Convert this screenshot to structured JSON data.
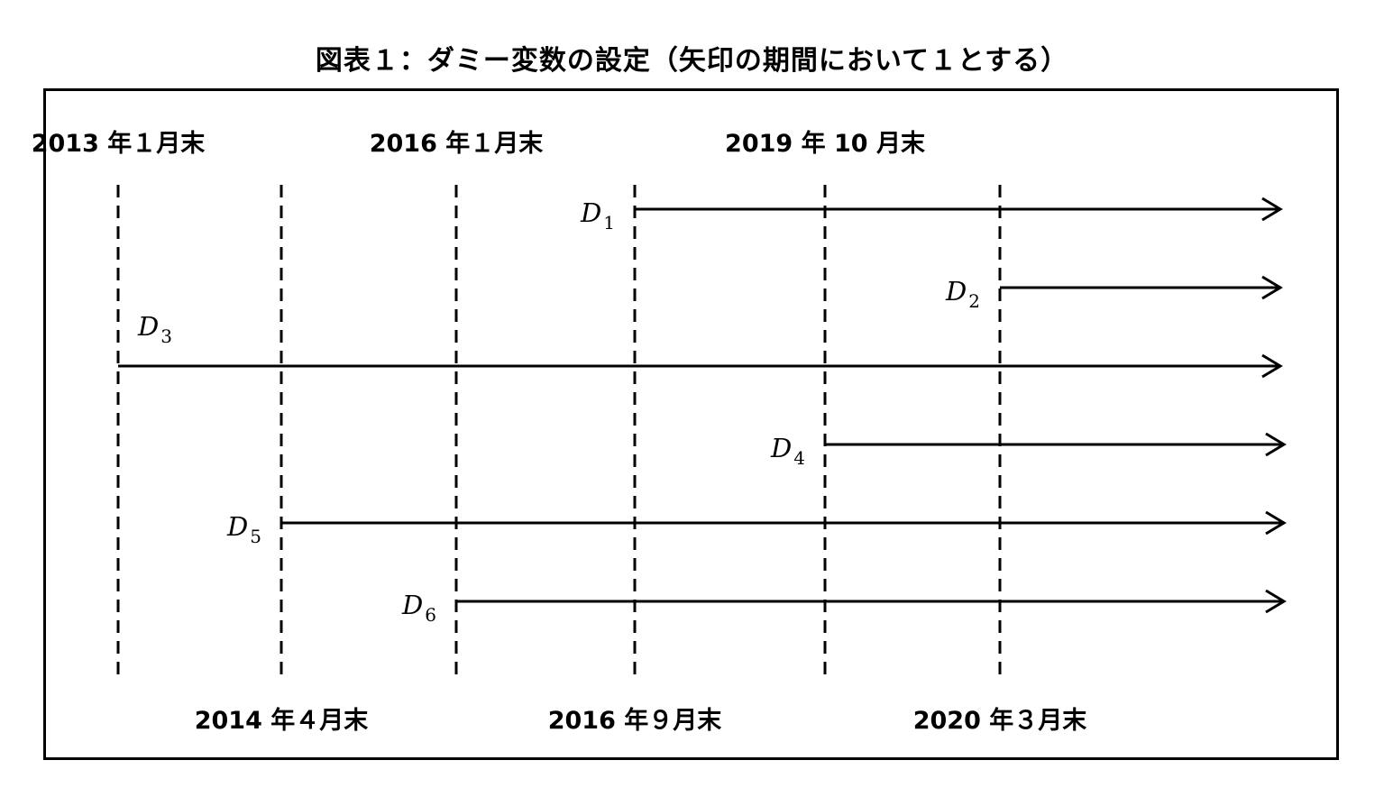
{
  "title": "図表１：ダミー変数の設定（矢印の期間において１とする）",
  "dates": [
    {
      "id": "d2013_01",
      "label": "2013 年１月末",
      "row": "top"
    },
    {
      "id": "d2014_04",
      "label": "2014 年４月末",
      "row": "bottom"
    },
    {
      "id": "d2016_01",
      "label": "2016 年１月末",
      "row": "top"
    },
    {
      "id": "d2016_09",
      "label": "2016 年９月末",
      "row": "bottom"
    },
    {
      "id": "d2019_10",
      "label": "2019 年 10 月末",
      "row": "top"
    },
    {
      "id": "d2020_03",
      "label": "2020 年３月末",
      "row": "bottom"
    }
  ],
  "dummies": [
    {
      "name": "D",
      "sub": "1",
      "start": "d2016_09"
    },
    {
      "name": "D",
      "sub": "2",
      "start": "d2020_03"
    },
    {
      "name": "D",
      "sub": "3",
      "start": "d2013_01"
    },
    {
      "name": "D",
      "sub": "4",
      "start": "d2019_10"
    },
    {
      "name": "D",
      "sub": "5",
      "start": "d2014_04"
    },
    {
      "name": "D",
      "sub": "6",
      "start": "d2016_01"
    }
  ],
  "colors": {
    "line": "#000000",
    "background": "#ffffff"
  }
}
